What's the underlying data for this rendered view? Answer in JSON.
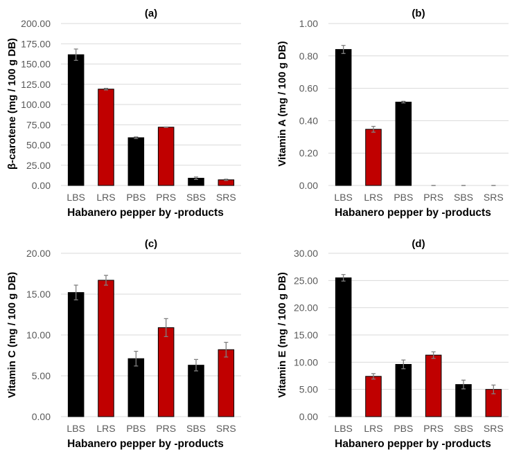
{
  "colors": {
    "black_series": "#000000",
    "red_series": "#c00000",
    "grid": "#d9d9d9",
    "error_bar": "#808080"
  },
  "chart_data": [
    {
      "type": "bar",
      "title": "(a)",
      "xlabel": "Habanero pepper by -products",
      "ylabel": "β-carotene (mg / 100 g DB)",
      "categories": [
        "LBS",
        "LRS",
        "PBS",
        "PRS",
        "SBS",
        "SRS"
      ],
      "values": [
        161.5,
        119.0,
        59.0,
        72.0,
        9.0,
        7.0
      ],
      "errors": [
        7.0,
        1.0,
        1.0,
        0.3,
        1.5,
        0.8
      ],
      "bar_colors": [
        "#000000",
        "#c00000",
        "#000000",
        "#c00000",
        "#000000",
        "#c00000"
      ],
      "ylim": [
        0,
        200
      ],
      "yticks": [
        "0.00",
        "25.00",
        "50.00",
        "75.00",
        "100.00",
        "125.00",
        "150.00",
        "175.00",
        "200.00"
      ]
    },
    {
      "type": "bar",
      "title": "(b)",
      "xlabel": "Habanero pepper by -products",
      "ylabel": "Vitamin A (mg / 100 g DB)",
      "categories": [
        "LBS",
        "LRS",
        "PBS",
        "PRS",
        "SBS",
        "SRS"
      ],
      "values": [
        0.84,
        0.347,
        0.515,
        0.0,
        0.0,
        0.0
      ],
      "errors": [
        0.025,
        0.018,
        0.005,
        0.0,
        0.0,
        0.0
      ],
      "bar_colors": [
        "#000000",
        "#c00000",
        "#000000",
        "#c00000",
        "#000000",
        "#c00000"
      ],
      "ylim": [
        0,
        1
      ],
      "yticks": [
        "0.00",
        "0.20",
        "0.40",
        "0.60",
        "0.80",
        "1.00"
      ]
    },
    {
      "type": "bar",
      "title": "(c)",
      "xlabel": "Habanero pepper by -products",
      "ylabel": "Vitamin C (mg / 100 g DB)",
      "categories": [
        "LBS",
        "LRS",
        "PBS",
        "PRS",
        "SBS",
        "SRS"
      ],
      "values": [
        15.2,
        16.7,
        7.1,
        10.9,
        6.3,
        8.2
      ],
      "errors": [
        0.9,
        0.6,
        0.9,
        1.1,
        0.7,
        0.9
      ],
      "bar_colors": [
        "#000000",
        "#c00000",
        "#000000",
        "#c00000",
        "#000000",
        "#c00000"
      ],
      "ylim": [
        0,
        20
      ],
      "yticks": [
        "0.00",
        "5.00",
        "10.00",
        "15.00",
        "20.00"
      ]
    },
    {
      "type": "bar",
      "title": "(d)",
      "xlabel": "Habanero pepper by -products",
      "ylabel": "Vitamin E (mg / 100 g DB)",
      "categories": [
        "LBS",
        "LRS",
        "PBS",
        "PRS",
        "SBS",
        "SRS"
      ],
      "values": [
        25.5,
        7.4,
        9.6,
        11.3,
        5.9,
        5.0
      ],
      "errors": [
        0.6,
        0.5,
        0.8,
        0.6,
        0.8,
        0.8
      ],
      "bar_colors": [
        "#000000",
        "#c00000",
        "#000000",
        "#c00000",
        "#000000",
        "#c00000"
      ],
      "ylim": [
        0,
        30
      ],
      "yticks": [
        "0.00",
        "5.00",
        "10.00",
        "15.00",
        "20.00",
        "25.00",
        "30.00"
      ]
    }
  ]
}
